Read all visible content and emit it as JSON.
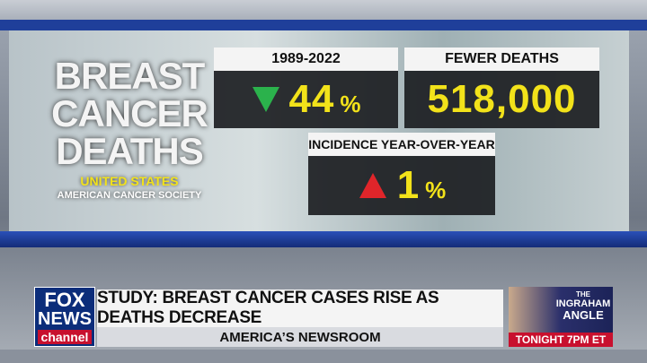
{
  "graphic": {
    "title_lines": [
      "BREAST",
      "CANCER",
      "DEATHS"
    ],
    "region": "UNITED STATES",
    "source": "AMERICAN CANCER SOCIETY",
    "panels": [
      {
        "header": "1989-2022",
        "value": "44",
        "unit": "%"
      },
      {
        "header": "FEWER DEATHS",
        "value": "518,000"
      },
      {
        "header": "INCIDENCE YEAR-OVER-YEAR",
        "value": "1",
        "unit": "%"
      }
    ]
  },
  "lower_third": {
    "logo": [
      "FOX",
      "NEWS",
      "channel"
    ],
    "headline": "STUDY: BREAST CANCER CASES RISE AS DEATHS DECREASE",
    "show": "AMERICA’S NEWSROOM",
    "promo": {
      "lines": [
        "THE",
        "INGRAHAM",
        "ANGLE"
      ],
      "time": "TONIGHT 7PM ET"
    }
  }
}
